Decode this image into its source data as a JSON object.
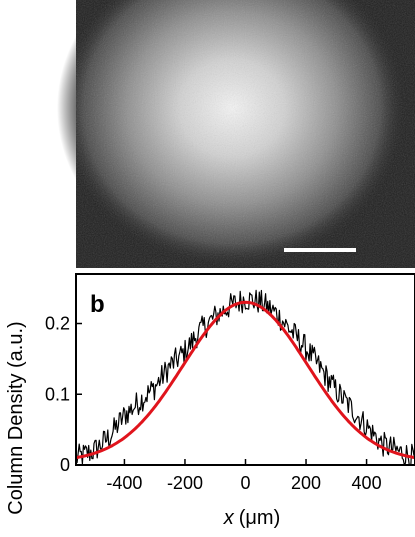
{
  "panel_b_label": "b",
  "colors": {
    "data_line": "#000000",
    "fit_line": "#e0141c",
    "image_background": "#1e1e1e",
    "scale_bar": "#ffffff"
  },
  "chart_data": {
    "type": "line",
    "xlabel_symbol": "x",
    "xlabel_unit": "(μm)",
    "ylabel": "Column Density (a.u.)",
    "xlim": [
      -560,
      560
    ],
    "ylim": [
      0,
      0.27
    ],
    "x_ticks": [
      "-400",
      "-200",
      "0",
      "200",
      "400"
    ],
    "x_tick_values": [
      -400,
      -200,
      0,
      200,
      400
    ],
    "y_ticks": [
      "0",
      "0.1",
      "0.2"
    ],
    "y_tick_values": [
      0,
      0.1,
      0.2
    ],
    "grid": false,
    "series": [
      {
        "role": "measured-profile",
        "x": [
          -560,
          -500,
          -450,
          -400,
          -350,
          -300,
          -250,
          -200,
          -150,
          -100,
          -50,
          0,
          50,
          100,
          150,
          200,
          250,
          300,
          350,
          400,
          450,
          500,
          560
        ],
        "y": [
          0.01,
          0.02,
          0.04,
          0.07,
          0.09,
          0.11,
          0.14,
          0.16,
          0.19,
          0.21,
          0.225,
          0.235,
          0.23,
          0.215,
          0.19,
          0.165,
          0.135,
          0.105,
          0.08,
          0.055,
          0.03,
          0.02,
          0.01
        ]
      },
      {
        "role": "gaussian-fit",
        "amplitude": 0.225,
        "center": 0,
        "sigma": 205,
        "offset": 0.005
      }
    ]
  }
}
